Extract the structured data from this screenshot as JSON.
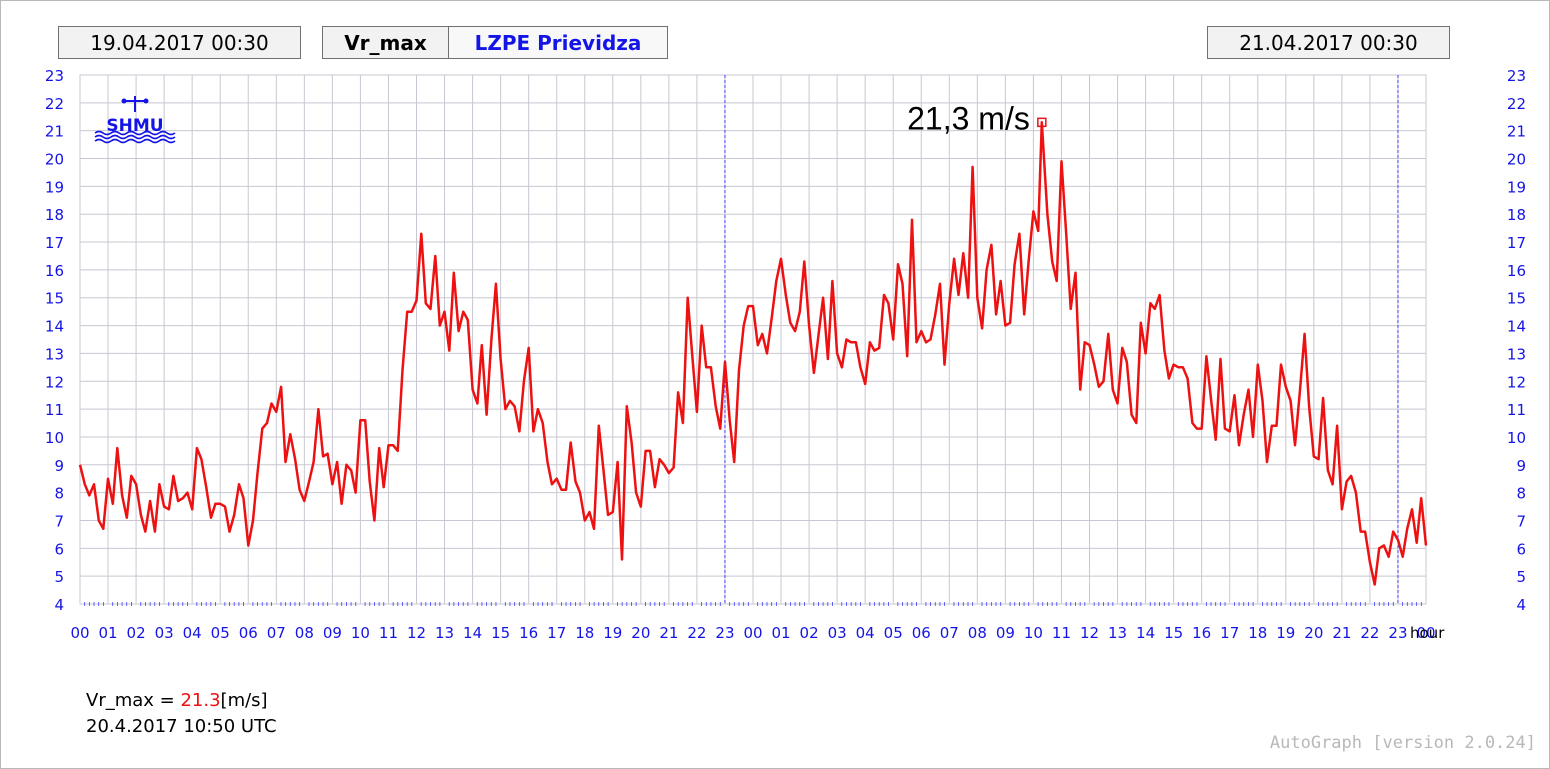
{
  "header": {
    "start_date": "19.04.2017 00:30",
    "end_date": "21.04.2017 00:30",
    "variable": "Vr_max",
    "station": "LZPE Prievidza"
  },
  "logo_text": "SHMU",
  "max_annotation": "21,3 m/s",
  "info": {
    "label": "Vr_max =",
    "value": "21.3",
    "unit": "[m/s]",
    "time": "20.4.2017 10:50 UTC"
  },
  "version_text": "AutoGraph [version 2.0.24]",
  "colors": {
    "line": "#ee1111",
    "axis_labels": "#1414e6",
    "grid": "#c8c8d2",
    "day_divider": "#4040ff"
  },
  "chart_data": {
    "type": "line",
    "title": "",
    "xlabel": "hour",
    "ylabel": "",
    "ylim": [
      4,
      23
    ],
    "yticks": [
      4,
      5,
      6,
      7,
      8,
      9,
      10,
      11,
      12,
      13,
      14,
      15,
      16,
      17,
      18,
      19,
      20,
      21,
      22,
      23
    ],
    "x_tick_labels": [
      "00",
      "01",
      "02",
      "03",
      "04",
      "05",
      "06",
      "07",
      "08",
      "09",
      "10",
      "11",
      "12",
      "13",
      "14",
      "15",
      "16",
      "17",
      "18",
      "19",
      "20",
      "21",
      "22",
      "23",
      "00",
      "01",
      "02",
      "03",
      "04",
      "05",
      "06",
      "07",
      "08",
      "09",
      "10",
      "11",
      "12",
      "13",
      "14",
      "15",
      "16",
      "17",
      "18",
      "19",
      "20",
      "21",
      "22",
      "23",
      "00"
    ],
    "day_dividers_at_hour": [
      23,
      47
    ],
    "grid": true,
    "legend": "none",
    "max_point": {
      "hour": 34.3,
      "value": 21.3
    },
    "series": [
      {
        "x": [
          0,
          0.17,
          0.33,
          0.5,
          0.67,
          0.83,
          1,
          1.17,
          1.33,
          1.5,
          1.67,
          1.83,
          2,
          2.17,
          2.33,
          2.5,
          2.67,
          2.83,
          3,
          3.17,
          3.33,
          3.5,
          3.67,
          3.83,
          4,
          4.17,
          4.33,
          4.5,
          4.67,
          4.83,
          5,
          5.17,
          5.33,
          5.5,
          5.67,
          5.83,
          6,
          6.17,
          6.33,
          6.5,
          6.67,
          6.83,
          7,
          7.17,
          7.33,
          7.5,
          7.67,
          7.83,
          8,
          8.17,
          8.33,
          8.5,
          8.67,
          8.83,
          9,
          9.17,
          9.33,
          9.5,
          9.67,
          9.83,
          10,
          10.17,
          10.33,
          10.5,
          10.67,
          10.83,
          11,
          11.17,
          11.33,
          11.5,
          11.67,
          11.83,
          12,
          12.17,
          12.33,
          12.5,
          12.67,
          12.83,
          13,
          13.17,
          13.33,
          13.5,
          13.67,
          13.83,
          14,
          14.17,
          14.33,
          14.5,
          14.67,
          14.83,
          15,
          15.17,
          15.33,
          15.5,
          15.67,
          15.83,
          16,
          16.17,
          16.33,
          16.5,
          16.67,
          16.83,
          17,
          17.17,
          17.33,
          17.5,
          17.67,
          17.83,
          18,
          18.17,
          18.33,
          18.5,
          18.67,
          18.83,
          19,
          19.17,
          19.33,
          19.5,
          19.67,
          19.83,
          20,
          20.17,
          20.33,
          20.5,
          20.67,
          20.83,
          21,
          21.17,
          21.33,
          21.5,
          21.67,
          21.83,
          22,
          22.17,
          22.33,
          22.5,
          22.67,
          22.83,
          23,
          23.17,
          23.33,
          23.5,
          23.67,
          23.83,
          24,
          24.17,
          24.33,
          24.5,
          24.67,
          24.83,
          25,
          25.17,
          25.33,
          25.5,
          25.67,
          25.83,
          26,
          26.17,
          26.33,
          26.5,
          26.67,
          26.83,
          27,
          27.17,
          27.33,
          27.5,
          27.67,
          27.83,
          28,
          28.17,
          28.33,
          28.5,
          28.67,
          28.83,
          29,
          29.17,
          29.33,
          29.5,
          29.67,
          29.83,
          30,
          30.17,
          30.33,
          30.5,
          30.67,
          30.83,
          31,
          31.17,
          31.33,
          31.5,
          31.67,
          31.83,
          32,
          32.17,
          32.33,
          32.5,
          32.67,
          32.83,
          33,
          33.17,
          33.33,
          33.5,
          33.67,
          33.83,
          34,
          34.17,
          34.3,
          34.5,
          34.67,
          34.83,
          35,
          35.17,
          35.33,
          35.5,
          35.67,
          35.83,
          36,
          36.17,
          36.33,
          36.5,
          36.67,
          36.83,
          37,
          37.17,
          37.33,
          37.5,
          37.67,
          37.83,
          38,
          38.17,
          38.33,
          38.5,
          38.67,
          38.83,
          39,
          39.17,
          39.33,
          39.5,
          39.67,
          39.83,
          40,
          40.17,
          40.33,
          40.5,
          40.67,
          40.83,
          41,
          41.17,
          41.33,
          41.5,
          41.67,
          41.83,
          42,
          42.17,
          42.33,
          42.5,
          42.67,
          42.83,
          43,
          43.17,
          43.33,
          43.5,
          43.67,
          43.83,
          44,
          44.17,
          44.33,
          44.5,
          44.67,
          44.83,
          45,
          45.17,
          45.33,
          45.5,
          45.67,
          45.83,
          46,
          46.17,
          46.33,
          46.5,
          46.67,
          46.83,
          47,
          47.17,
          47.33,
          47.5,
          47.67,
          47.83,
          48
        ],
        "values": [
          9.0,
          8.3,
          7.9,
          8.3,
          7.0,
          6.7,
          8.5,
          7.6,
          9.6,
          7.9,
          7.1,
          8.6,
          8.3,
          7.2,
          6.6,
          7.7,
          6.6,
          8.3,
          7.5,
          7.4,
          8.6,
          7.7,
          7.8,
          8.0,
          7.4,
          9.6,
          9.2,
          8.2,
          7.1,
          7.6,
          7.6,
          7.5,
          6.6,
          7.2,
          8.3,
          7.8,
          6.1,
          7.0,
          8.7,
          10.3,
          10.5,
          11.2,
          10.9,
          11.8,
          9.1,
          10.1,
          9.2,
          8.1,
          7.7,
          8.4,
          9.1,
          11.0,
          9.3,
          9.4,
          8.3,
          9.1,
          7.6,
          9.0,
          8.8,
          8.0,
          10.6,
          10.6,
          8.4,
          7.0,
          9.6,
          8.2,
          9.7,
          9.7,
          9.5,
          12.4,
          14.5,
          14.5,
          14.9,
          17.3,
          14.8,
          14.6,
          16.5,
          14.0,
          14.5,
          13.1,
          15.9,
          13.8,
          14.5,
          14.2,
          11.7,
          11.2,
          13.3,
          10.8,
          13.5,
          15.5,
          12.8,
          11.0,
          11.3,
          11.1,
          10.2,
          12.0,
          13.2,
          10.2,
          11.0,
          10.5,
          9.1,
          8.3,
          8.5,
          8.1,
          8.1,
          9.8,
          8.4,
          8.0,
          7.0,
          7.3,
          6.7,
          10.4,
          8.8,
          7.2,
          7.3,
          9.1,
          5.6,
          11.1,
          9.8,
          8.0,
          7.5,
          9.5,
          9.5,
          8.2,
          9.2,
          9.0,
          8.7,
          8.9,
          11.6,
          10.5,
          15.0,
          13.0,
          10.9,
          14.0,
          12.5,
          12.5,
          11.1,
          10.3,
          12.7,
          10.6,
          9.1,
          12.4,
          14.0,
          14.7,
          14.7,
          13.3,
          13.7,
          13.0,
          14.3,
          15.6,
          16.4,
          15.1,
          14.1,
          13.8,
          14.5,
          16.3,
          14.0,
          12.3,
          13.6,
          15.0,
          12.8,
          15.6,
          13.0,
          12.5,
          13.5,
          13.4,
          13.4,
          12.5,
          11.9,
          13.4,
          13.1,
          13.2,
          15.1,
          14.8,
          13.5,
          16.2,
          15.5,
          12.9,
          17.8,
          13.4,
          13.8,
          13.4,
          13.5,
          14.4,
          15.5,
          12.6,
          14.8,
          16.4,
          15.1,
          16.6,
          15.0,
          19.7,
          15.0,
          13.9,
          16.0,
          16.9,
          14.4,
          15.6,
          14.0,
          14.1,
          16.2,
          17.3,
          14.4,
          16.3,
          18.1,
          17.4,
          21.3,
          18.0,
          16.3,
          15.6,
          19.9,
          17.3,
          14.6,
          15.9,
          11.7,
          13.4,
          13.3,
          12.6,
          11.8,
          12.0,
          13.7,
          11.7,
          11.2,
          13.2,
          12.7,
          10.8,
          10.5,
          14.1,
          13.0,
          14.8,
          14.6,
          15.1,
          13.1,
          12.1,
          12.6,
          12.5,
          12.5,
          12.1,
          10.5,
          10.3,
          10.3,
          12.9,
          11.4,
          9.9,
          12.8,
          10.3,
          10.2,
          11.5,
          9.7,
          10.8,
          11.7,
          10.0,
          12.6,
          11.3,
          9.1,
          10.4,
          10.4,
          12.6,
          11.8,
          11.3,
          9.7,
          11.6,
          13.7,
          11.1,
          9.3,
          9.2,
          11.4,
          8.8,
          8.3,
          10.4,
          7.4,
          8.4,
          8.6,
          8.0,
          6.6,
          6.6,
          5.5,
          4.7,
          6.0,
          6.1,
          5.7,
          6.6,
          6.3,
          5.7,
          6.7,
          7.4,
          6.2,
          7.8,
          6.1
        ]
      }
    ]
  }
}
